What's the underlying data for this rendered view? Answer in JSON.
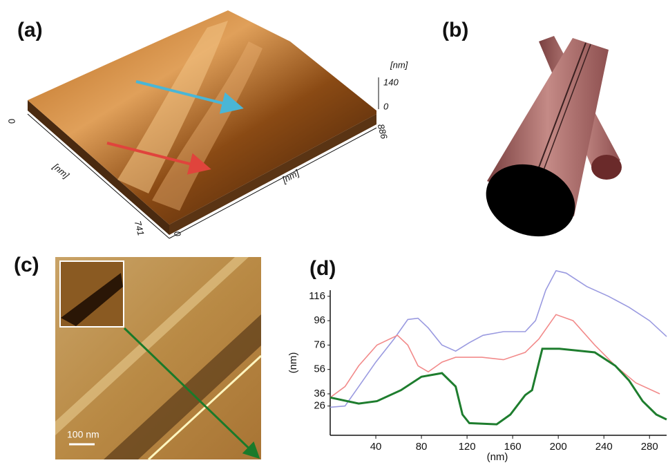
{
  "panels": {
    "a": {
      "label": "(a)",
      "z_unit": "[nm]",
      "z_max": "140",
      "z_min": "0",
      "x_end": "886",
      "origin": "0",
      "x_unit": "[nm]",
      "y_unit": "[nm]",
      "y_end": "741",
      "y_origin": "0"
    },
    "b": {
      "label": "(b)"
    },
    "c": {
      "label": "(c)",
      "scale_bar": "100 nm"
    }
  },
  "chart_data": {
    "type": "line",
    "panel_label": "(d)",
    "x_label": "(nm)",
    "y_label": "(nm)",
    "xlim": [
      0,
      295
    ],
    "ylim": [
      2,
      121
    ],
    "xticks": [
      40,
      80,
      120,
      160,
      200,
      240,
      280
    ],
    "yticks": [
      26,
      36,
      56,
      76,
      96,
      116
    ],
    "series": [
      {
        "color": "#9a9ae0",
        "x": [
          0,
          13,
          25,
          40,
          56,
          68,
          77,
          86,
          98,
          110,
          122,
          134,
          152,
          171,
          180,
          189,
          198,
          207,
          225,
          244,
          262,
          280,
          295
        ],
        "values": [
          25,
          26,
          42,
          62,
          81,
          97,
          98,
          90,
          76,
          71,
          78,
          84,
          87,
          87,
          96,
          121,
          137,
          135,
          124,
          116,
          107,
          96,
          83
        ]
      },
      {
        "color": "#f28a8a",
        "x": [
          0,
          13,
          25,
          41,
          59,
          68,
          77,
          86,
          98,
          110,
          133,
          152,
          171,
          183,
          198,
          213,
          232,
          250,
          268,
          289
        ],
        "values": [
          33,
          42,
          59,
          76,
          84,
          76,
          59,
          54,
          62,
          66,
          66,
          64,
          70,
          81,
          101,
          96,
          76,
          59,
          45,
          36
        ]
      },
      {
        "color": "#1e7d2e",
        "x": [
          0,
          25,
          41,
          62,
          80,
          98,
          110,
          116,
          122,
          146,
          158,
          171,
          177,
          186,
          201,
          232,
          250,
          262,
          274,
          286,
          295
        ],
        "values": [
          33,
          28,
          30,
          39,
          50,
          53,
          42,
          19,
          12,
          11,
          19,
          35,
          39,
          73,
          73,
          70,
          59,
          47,
          30,
          19,
          15
        ]
      }
    ]
  }
}
